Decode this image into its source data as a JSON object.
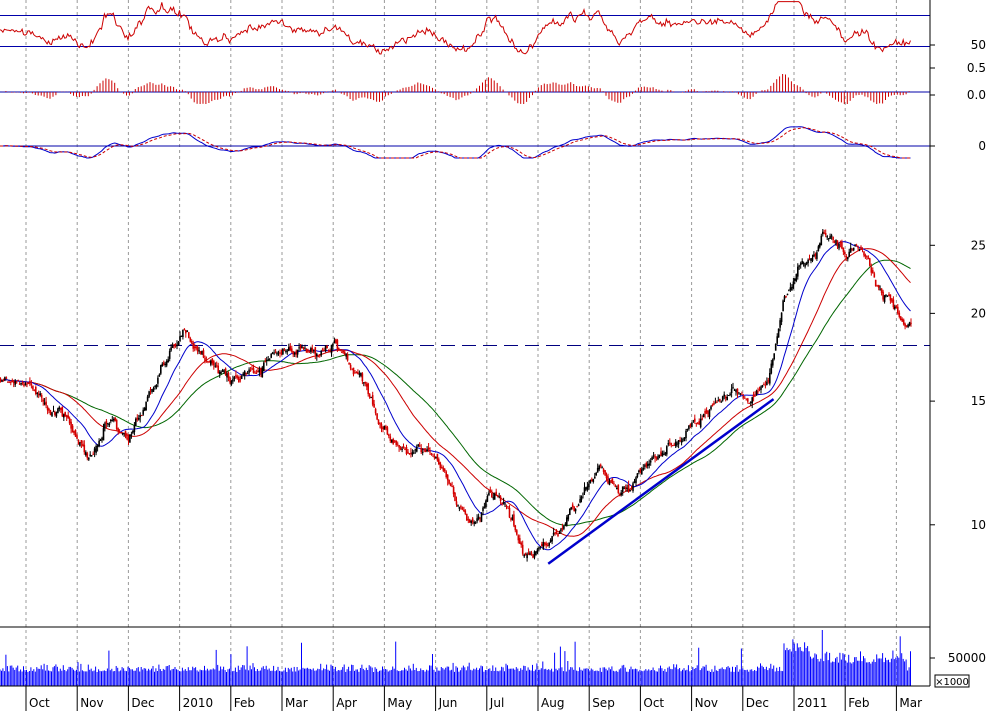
{
  "chart_data": {
    "type": "stock-chart",
    "colors": {
      "up": "#000000",
      "down": "#d40000",
      "ma_fast": "#0000cc",
      "ma_mid": "#cc0000",
      "ma_slow": "#006600",
      "volume": "#0000ff",
      "osc": "#cc0000",
      "ref_line": "#0000aa",
      "dashed_level": "#000080",
      "trendline": "#0000cc"
    },
    "x_labels": [
      "Oct",
      "Nov",
      "Dec",
      "2010",
      "Feb",
      "Mar",
      "Apr",
      "May",
      "Jun",
      "Jul",
      "Aug",
      "Sep",
      "Oct",
      "Nov",
      "Dec",
      "2011",
      "Feb",
      "Mar"
    ],
    "price_axis": {
      "scale": "log",
      "ylim": [
        7.2,
        32
      ],
      "ticks": [
        10,
        15,
        20,
        25
      ]
    },
    "price_series": [
      {
        "m": 0,
        "p": 16.0
      },
      {
        "m": 0.4,
        "p": 14.6
      },
      {
        "m": 0.8,
        "p": 14.2
      },
      {
        "m": 1.2,
        "p": 12.2
      },
      {
        "m": 1.6,
        "p": 14.1
      },
      {
        "m": 2.0,
        "p": 13.2
      },
      {
        "m": 2.4,
        "p": 15.6
      },
      {
        "m": 2.8,
        "p": 17.6
      },
      {
        "m": 3.1,
        "p": 19.0
      },
      {
        "m": 3.5,
        "p": 17.5
      },
      {
        "m": 3.9,
        "p": 16.0
      },
      {
        "m": 4.4,
        "p": 16.5
      },
      {
        "m": 5.0,
        "p": 17.8
      },
      {
        "m": 5.5,
        "p": 17.4
      },
      {
        "m": 6.0,
        "p": 17.7
      },
      {
        "m": 6.5,
        "p": 16.4
      },
      {
        "m": 6.9,
        "p": 13.8
      },
      {
        "m": 7.3,
        "p": 13.0
      },
      {
        "m": 7.8,
        "p": 12.6
      },
      {
        "m": 8.2,
        "p": 11.6
      },
      {
        "m": 8.6,
        "p": 10.3
      },
      {
        "m": 9.0,
        "p": 11.0
      },
      {
        "m": 9.4,
        "p": 10.5
      },
      {
        "m": 9.7,
        "p": 9.0
      },
      {
        "m": 10.0,
        "p": 9.3
      },
      {
        "m": 10.4,
        "p": 9.6
      },
      {
        "m": 10.8,
        "p": 10.8
      },
      {
        "m": 11.2,
        "p": 12.2
      },
      {
        "m": 11.6,
        "p": 11.2
      },
      {
        "m": 12.0,
        "p": 12.0
      },
      {
        "m": 12.4,
        "p": 12.6
      },
      {
        "m": 12.8,
        "p": 13.4
      },
      {
        "m": 13.3,
        "p": 14.6
      },
      {
        "m": 13.8,
        "p": 15.4
      },
      {
        "m": 14.1,
        "p": 15.0
      },
      {
        "m": 14.5,
        "p": 16.2
      },
      {
        "m": 14.8,
        "p": 21.0
      },
      {
        "m": 15.1,
        "p": 23.5
      },
      {
        "m": 15.4,
        "p": 25.2
      },
      {
        "m": 15.7,
        "p": 25.8
      },
      {
        "m": 16.0,
        "p": 24.2
      },
      {
        "m": 16.3,
        "p": 25.2
      },
      {
        "m": 16.6,
        "p": 22.4
      },
      {
        "m": 16.9,
        "p": 21.0
      },
      {
        "m": 17.1,
        "p": 19.5
      }
    ],
    "dashed_level": 18.0,
    "trendline": {
      "from": {
        "m": 10.2,
        "p": 8.8
      },
      "to": {
        "m": 14.6,
        "p": 15.1
      }
    },
    "rsi_panel": {
      "ticks": [
        50
      ],
      "ref_lines": [
        30,
        70
      ]
    },
    "macd_hist_panel": {
      "ticks": [
        0.5,
        0.0
      ]
    },
    "macd_panel": {
      "ticks": [
        0
      ]
    },
    "volume_panel": {
      "ticks": [
        50000
      ],
      "unit_label": "×1000"
    }
  }
}
